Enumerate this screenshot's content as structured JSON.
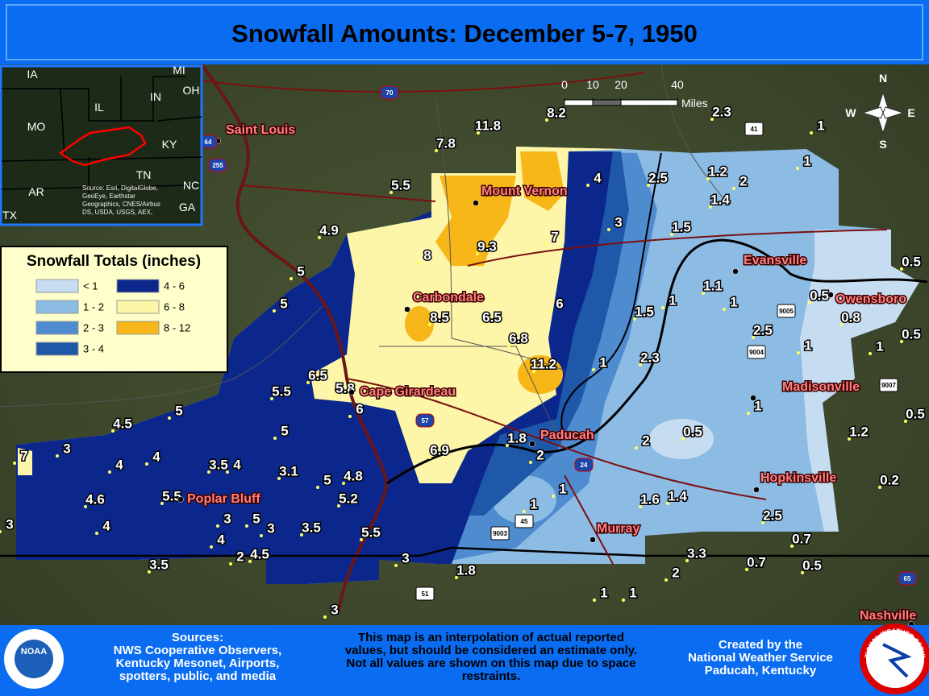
{
  "header": {
    "title": "Snowfall Amounts: December 5-7, 1950"
  },
  "legend": {
    "title": "Snowfall Totals (inches)",
    "items": [
      {
        "label": "< 1",
        "color": "#c6dcf0"
      },
      {
        "label": "1 - 2",
        "color": "#8cbbe4"
      },
      {
        "label": "2 - 3",
        "color": "#4f8ccf"
      },
      {
        "label": "3 - 4",
        "color": "#1f58a8"
      },
      {
        "label": "4 - 6",
        "color": "#0c278c"
      },
      {
        "label": "6 - 8",
        "color": "#fdf6a8"
      },
      {
        "label": "8 - 12",
        "color": "#f8b719"
      }
    ]
  },
  "scale": {
    "ticks": [
      0,
      10,
      20,
      40
    ],
    "unit": "Miles"
  },
  "compass": [
    "N",
    "E",
    "S",
    "W"
  ],
  "inset": {
    "labels": [
      "IA",
      "MI",
      "OH",
      "IN",
      "IL",
      "MO",
      "KY",
      "TN",
      "AR",
      "NC",
      "GA",
      "TX"
    ],
    "source": [
      "Source: Esri, DigitalGlobe,",
      "GeoEye, Earthstar",
      "Geographics, CNES/Airbus",
      "DS, USDA, USGS, AEX,"
    ]
  },
  "cities": [
    "Saint Louis",
    "Mount Vernon",
    "Carbondale",
    "Cape Girardeau",
    "Paducah",
    "Evansville",
    "Owensboro",
    "Madisonville",
    "Hopkinsville",
    "Poplar Bluff",
    "Murray",
    "Nashville"
  ],
  "highways": [
    "70",
    "64",
    "255",
    "57",
    "24",
    "41",
    "9005",
    "9004",
    "9007",
    "45",
    "9003",
    "51",
    "65"
  ],
  "observations": [
    11.8,
    8.2,
    2.3,
    1,
    7.8,
    5.5,
    4,
    2.5,
    1.2,
    2,
    1,
    1.4,
    3,
    1.5,
    4.9,
    9.3,
    7,
    8,
    5,
    0.5,
    1.1,
    1,
    1,
    0.5,
    5,
    8.5,
    6.5,
    6,
    1.5,
    0.8,
    6.8,
    2.5,
    1,
    1,
    0.5,
    2.3,
    1,
    11.2,
    6.5,
    5.8,
    5.5,
    6,
    1,
    5,
    4.5,
    5,
    0.5,
    1.2,
    1.8,
    2,
    0.5,
    6.9,
    3,
    2,
    4,
    4,
    3.5,
    4,
    3.1,
    7,
    0.2,
    5,
    4.8,
    5.5,
    5.2,
    1,
    1,
    1.6,
    1.4,
    4.6,
    3,
    5,
    3,
    4,
    3,
    3.5,
    5.5,
    2.5,
    0.7,
    4,
    4.5,
    2,
    3.3,
    3,
    0.7,
    0.5,
    3.5,
    2,
    1.8,
    1,
    1,
    3
  ],
  "footer": {
    "sources": [
      "Sources:",
      "NWS Cooperative Observers,",
      "Kentucky Mesonet, Airports,",
      "spotters, public, and media"
    ],
    "disclaimer": [
      "This map is an interpolation of actual reported",
      "values, but should be considered an estimate only.",
      "Not all values are shown on this map due to space",
      "restraints."
    ],
    "credit": [
      "Created by the",
      "National Weather Service",
      "Paducah, Kentucky"
    ],
    "logos": [
      "NOAA",
      "NATIONAL WEATHER SERVICE"
    ]
  }
}
